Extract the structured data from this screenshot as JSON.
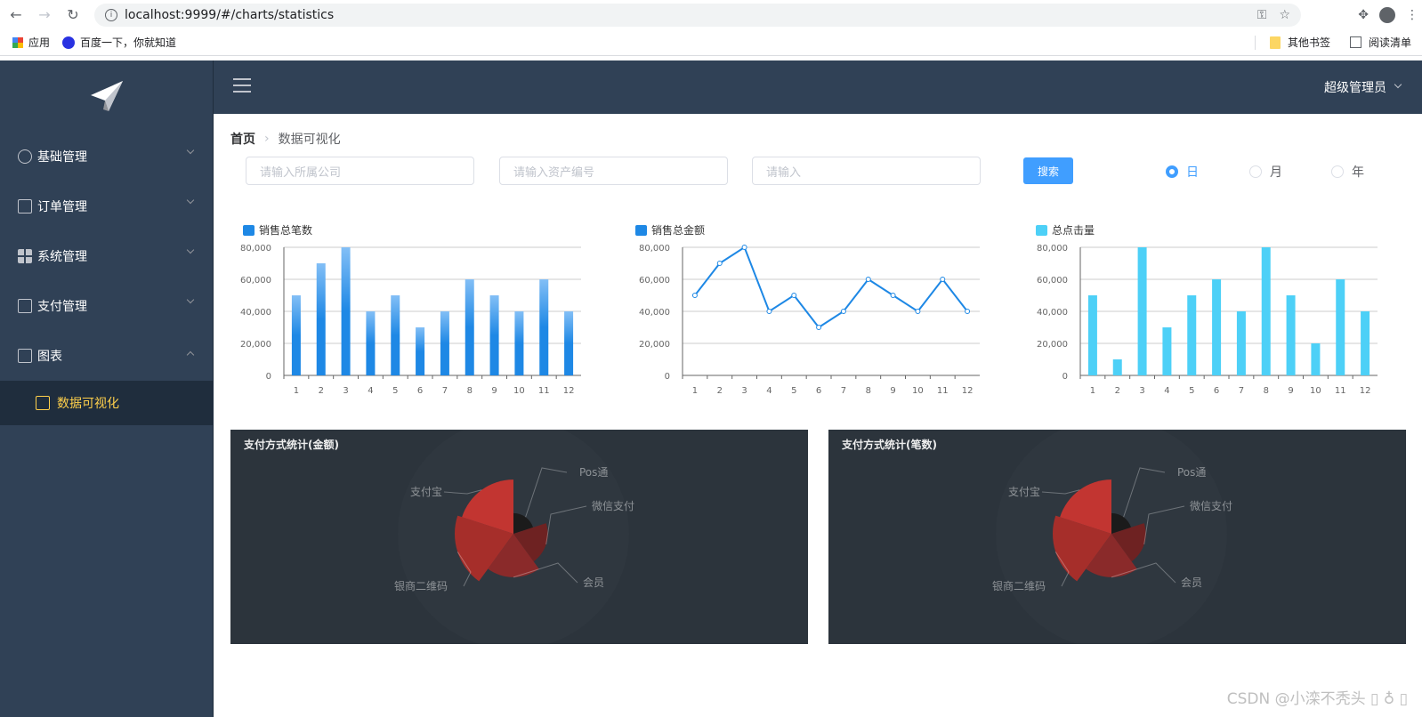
{
  "browser": {
    "url": "localhost:9999/#/charts/statistics",
    "bookmarks": [
      "应用",
      "百度一下，你就知道"
    ],
    "bookmarks_right": [
      "其他书签",
      "阅读清单"
    ]
  },
  "sidebar": {
    "items": [
      {
        "label": "基础管理",
        "icon": "gear-icon"
      },
      {
        "label": "订单管理",
        "icon": "clipboard-icon"
      },
      {
        "label": "系统管理",
        "icon": "grid-icon"
      },
      {
        "label": "支付管理",
        "icon": "calculator-icon"
      },
      {
        "label": "图表",
        "icon": "calculator-icon",
        "expanded": true
      }
    ],
    "active_sub": "数据可视化"
  },
  "header": {
    "user": "超级管理员"
  },
  "breadcrumb": {
    "home": "首页",
    "current": "数据可视化"
  },
  "filters": {
    "company_placeholder": "请输入所属公司",
    "asset_placeholder": "请输入资产编号",
    "generic_placeholder": "请输入",
    "search_label": "搜索",
    "radios": [
      "日",
      "月",
      "年"
    ],
    "selected": "日"
  },
  "chart_data": [
    {
      "type": "bar",
      "legend": "销售总笔数",
      "color": "#1e88e5",
      "categories": [
        "1",
        "2",
        "3",
        "4",
        "5",
        "6",
        "7",
        "8",
        "9",
        "10",
        "11",
        "12"
      ],
      "values": [
        50000,
        70000,
        80000,
        40000,
        50000,
        30000,
        40000,
        60000,
        50000,
        40000,
        60000,
        40000
      ],
      "ylim": [
        0,
        80000
      ],
      "yticks": [
        "0",
        "20,000",
        "40,000",
        "60,000",
        "80,000"
      ]
    },
    {
      "type": "line",
      "legend": "销售总金额",
      "color": "#1e88e5",
      "categories": [
        "1",
        "2",
        "3",
        "4",
        "5",
        "6",
        "7",
        "8",
        "9",
        "10",
        "11",
        "12"
      ],
      "values": [
        50000,
        70000,
        80000,
        40000,
        50000,
        30000,
        40000,
        60000,
        50000,
        40000,
        60000,
        40000
      ],
      "ylim": [
        0,
        80000
      ],
      "yticks": [
        "0",
        "20,000",
        "40,000",
        "60,000",
        "80,000"
      ]
    },
    {
      "type": "bar",
      "legend": "总点击量",
      "color": "#4dd0f7",
      "categories": [
        "1",
        "2",
        "3",
        "4",
        "5",
        "6",
        "7",
        "8",
        "9",
        "10",
        "11",
        "12"
      ],
      "values": [
        50000,
        10000,
        80000,
        30000,
        50000,
        60000,
        40000,
        80000,
        50000,
        20000,
        60000,
        40000
      ],
      "ylim": [
        0,
        80000
      ],
      "yticks": [
        "0",
        "20,000",
        "40,000",
        "60,000",
        "80,000"
      ]
    },
    {
      "type": "pie",
      "title": "支付方式统计(金额)",
      "categories": [
        "Pos通",
        "微信支付",
        "会员",
        "银商二维码",
        "支付宝"
      ],
      "values": [
        3,
        12,
        18,
        28,
        25
      ]
    },
    {
      "type": "pie",
      "title": "支付方式统计(笔数)",
      "categories": [
        "Pos通",
        "微信支付",
        "会员",
        "银商二维码",
        "支付宝"
      ],
      "values": [
        3,
        12,
        18,
        28,
        25
      ]
    }
  ],
  "watermark": "CSDN @小滦不秃头 ▯ ♁ ▯"
}
